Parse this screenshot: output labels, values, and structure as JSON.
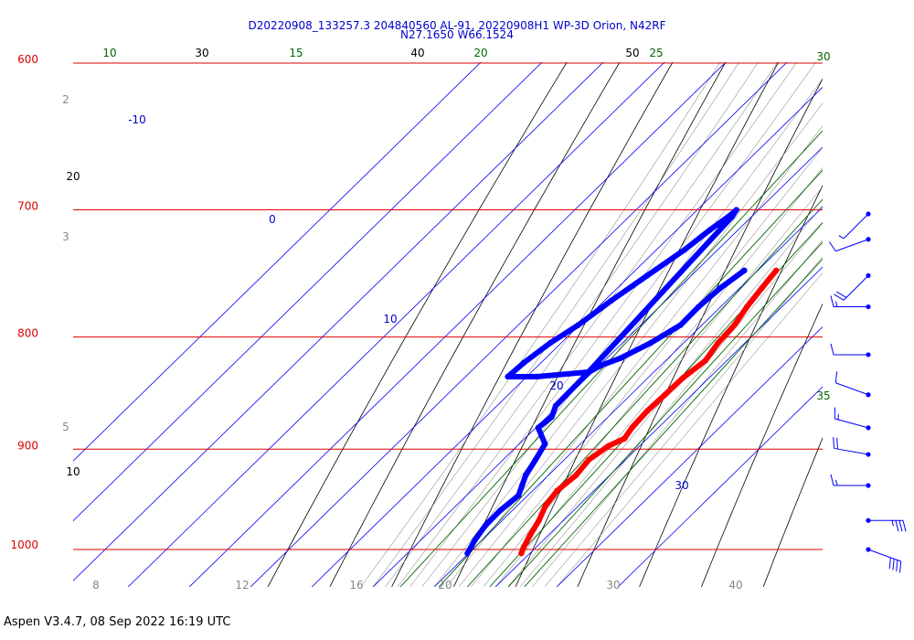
{
  "header": {
    "line1": "D20220908_133257.3 204840560 AL-91, 20220908H1 WP-3D Orion, N42RF",
    "line2": "N27.1650 W66.1524"
  },
  "footer": "Aspen V3.4.7, 08 Sep 2022  16:19 UTC",
  "colors": {
    "isobar": "#dd0000",
    "mixing_ratio": "#006600",
    "isotherm_label": "#0000cc",
    "temperature": "#ff0000",
    "dewpoint": "#0000ff",
    "wind": "#0000ff",
    "dry_adiabat": "#000000",
    "moist_adiabat": "#666666"
  },
  "chart_data": {
    "type": "skew-t log-p",
    "y_axis": "pressure (hPa)",
    "pressure_range": [
      1030,
      600
    ],
    "isobars": [
      "600",
      "700",
      "800",
      "900",
      "1000"
    ],
    "isotherm_labels": [
      "-10",
      "0",
      "10",
      "20",
      "30"
    ],
    "mixing_ratio_labels": [
      "10",
      "15",
      "20",
      "25",
      "30",
      "35"
    ],
    "dry_adiabat_labels": [
      "30",
      "40",
      "50",
      "20",
      "10"
    ],
    "bottom_labels": [
      "8",
      "12",
      "16",
      "20",
      "30",
      "40"
    ],
    "left_labels": [
      "2",
      "3",
      "5"
    ],
    "temperature_profile": [
      [
        746,
        23.0
      ],
      [
        760,
        23.6
      ],
      [
        775,
        24.3
      ],
      [
        790,
        25.3
      ],
      [
        805,
        25.6
      ],
      [
        820,
        26.5
      ],
      [
        835,
        25.7
      ],
      [
        850,
        25.6
      ],
      [
        865,
        25.4
      ],
      [
        880,
        25.7
      ],
      [
        890,
        26.3
      ],
      [
        897,
        24.9
      ],
      [
        910,
        24.0
      ],
      [
        925,
        24.5
      ],
      [
        940,
        24.0
      ],
      [
        955,
        24.6
      ],
      [
        970,
        26.0
      ],
      [
        985,
        27.0
      ],
      [
        998,
        28.0
      ],
      [
        1004,
        28.6
      ]
    ],
    "dewpoint_profile": [
      [
        746,
        17.8
      ],
      [
        760,
        16.8
      ],
      [
        775,
        16.4
      ],
      [
        790,
        16.5
      ],
      [
        805,
        14.6
      ],
      [
        818,
        12.2
      ],
      [
        824,
        10.3
      ],
      [
        830,
        9.4
      ],
      [
        834,
        1.6
      ],
      [
        834,
        -3.1
      ],
      [
        822,
        -2.8
      ],
      [
        805,
        -1.8
      ],
      [
        790,
        -0.2
      ],
      [
        770,
        1.1
      ],
      [
        750,
        2.8
      ],
      [
        730,
        4.6
      ],
      [
        715,
        5.4
      ],
      [
        705,
        6.2
      ],
      [
        700,
        6.4
      ],
      [
        705,
        6.8
      ],
      [
        835,
        9.4
      ],
      [
        860,
        9.6
      ],
      [
        870,
        10.8
      ],
      [
        880,
        10.4
      ],
      [
        895,
        14.2
      ],
      [
        910,
        15.3
      ],
      [
        925,
        16.3
      ],
      [
        935,
        17.4
      ],
      [
        945,
        18.5
      ],
      [
        960,
        18.0
      ],
      [
        975,
        18.1
      ],
      [
        990,
        18.8
      ],
      [
        1004,
        19.8
      ]
    ],
    "wind_barbs": [
      {
        "p": 703,
        "dir": 225,
        "spd": 5
      },
      {
        "p": 722,
        "dir": 250,
        "spd": 10
      },
      {
        "p": 750,
        "dir": 225,
        "spd": 20
      },
      {
        "p": 775,
        "dir": 270,
        "spd": 15
      },
      {
        "p": 815,
        "dir": 270,
        "spd": 10
      },
      {
        "p": 850,
        "dir": 290,
        "spd": 10
      },
      {
        "p": 880,
        "dir": 285,
        "spd": 15
      },
      {
        "p": 905,
        "dir": 280,
        "spd": 20
      },
      {
        "p": 935,
        "dir": 270,
        "spd": 15
      },
      {
        "p": 970,
        "dir": 90,
        "spd": 35
      },
      {
        "p": 1000,
        "dir": 110,
        "spd": 40
      }
    ]
  }
}
